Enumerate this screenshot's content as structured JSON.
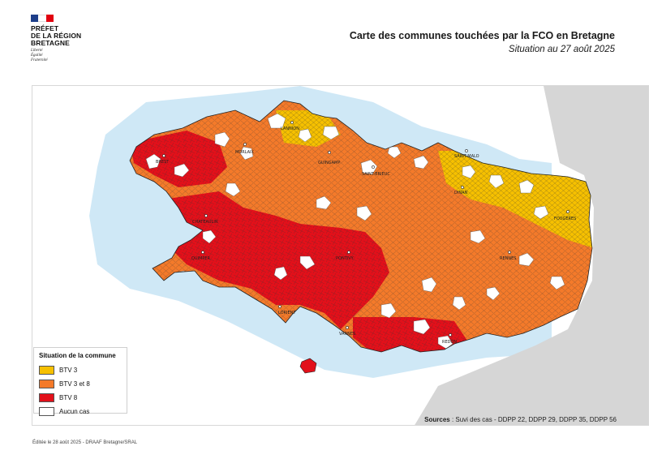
{
  "header": {
    "logo_lines": [
      "PRÉFET",
      "DE LA RÉGION",
      "BRETAGNE"
    ],
    "motto_lines": [
      "Liberté",
      "Égalité",
      "Fraternité"
    ],
    "flag_colors": [
      "#1d3e8a",
      "#ffffff",
      "#e1000f"
    ]
  },
  "title": "Carte des communes touchées par la FCO en Bretagne",
  "subtitle": "Situation au 27 août 2025",
  "map": {
    "colors": {
      "btv3": "#f6c000",
      "btv3_8": "#f47a2a",
      "btv8": "#e2101a",
      "none": "#ffffff",
      "sea": "#cfe8f6",
      "neighbour_land": "#d6d6d6",
      "border": "#333333"
    },
    "cities": [
      "LANNION",
      "MORLAIX",
      "GUINGAMP",
      "SAINT-BRIEUC",
      "SAINT-MALO",
      "DINAN",
      "FOUGÈRES",
      "BREST",
      "CHATEAULIN",
      "QUIMPER",
      "PONTIVY",
      "RENNES",
      "LORIENT",
      "VANNES",
      "REDON"
    ]
  },
  "legend": {
    "title": "Situation de la commune",
    "items": [
      {
        "label": "BTV 3",
        "color": "#f6c000"
      },
      {
        "label": "BTV 3 et 8",
        "color": "#f47a2a"
      },
      {
        "label": "BTV 8",
        "color": "#e2101a"
      },
      {
        "label": "Aucun cas",
        "color": "#ffffff"
      }
    ]
  },
  "sources": {
    "label": "Sources",
    "text": " : Suvi des cas - DDPP 22, DDPP 29, DDPP 35, DDPP 56"
  },
  "footer": "Éditée le 28 août 2025 - DRAAF Bretagne/SRAL"
}
